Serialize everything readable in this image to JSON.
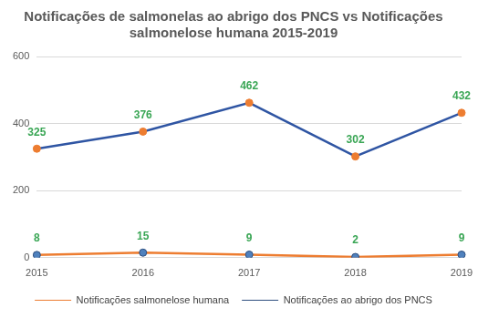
{
  "chart_data": {
    "type": "line",
    "title": [
      "Notificações de salmonelas ao abrigo dos PNCS vs Notificações",
      "salmonelose humana 2015-2019"
    ],
    "categories": [
      "2015",
      "2016",
      "2017",
      "2018",
      "2019"
    ],
    "series": [
      {
        "name": "Notificações salmonelose humana",
        "color": "#2f55a3",
        "marker": "circle",
        "values": [
          325,
          376,
          462,
          302,
          432
        ]
      },
      {
        "name": "Notificações ao abrigo dos PNCS",
        "color": "#ed7d31",
        "marker": "circle",
        "values": [
          8,
          15,
          9,
          2,
          9
        ]
      }
    ],
    "ylim": [
      0,
      600
    ],
    "yticks": [
      0,
      200,
      400,
      600
    ],
    "grid": true,
    "legend": "bottom",
    "data_labels": true
  }
}
